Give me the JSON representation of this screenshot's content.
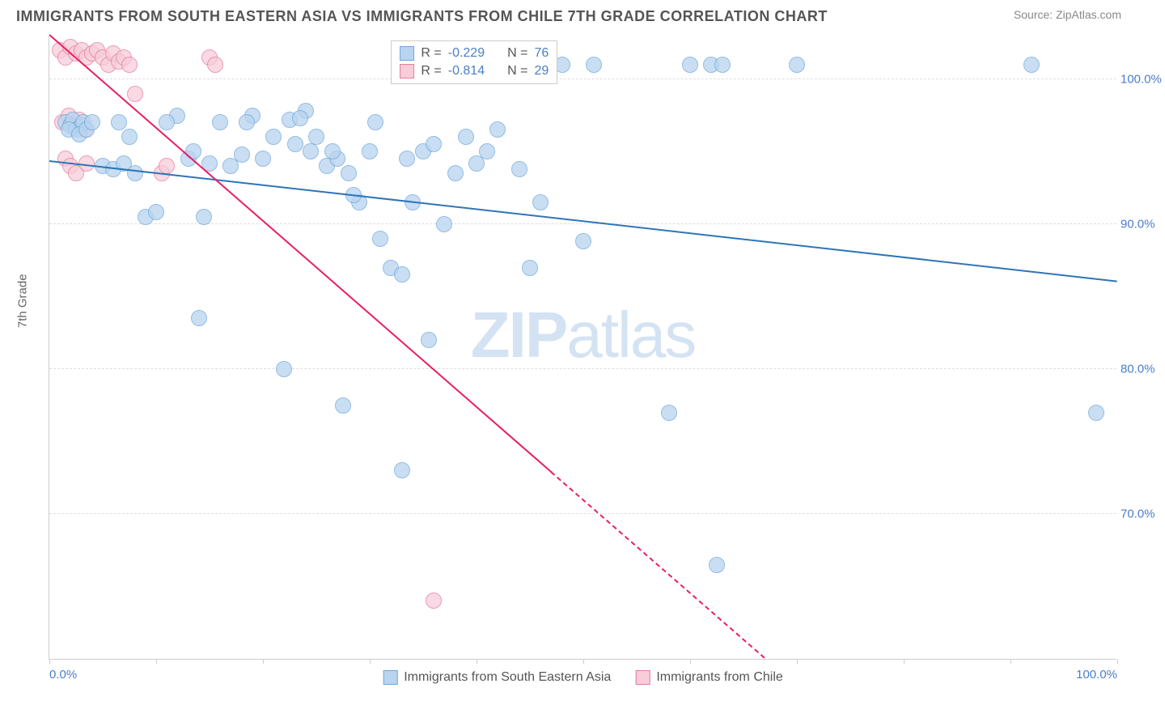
{
  "title": "IMMIGRANTS FROM SOUTH EASTERN ASIA VS IMMIGRANTS FROM CHILE 7TH GRADE CORRELATION CHART",
  "source": "Source: ZipAtlas.com",
  "ylabel": "7th Grade",
  "watermark_bold": "ZIP",
  "watermark_light": "atlas",
  "chart": {
    "type": "scatter",
    "xlim": [
      0,
      100
    ],
    "ylim": [
      60,
      103
    ],
    "x_tick_positions": [
      0,
      10,
      20,
      30,
      40,
      50,
      60,
      70,
      80,
      90,
      100
    ],
    "x_labeled_ticks": [
      {
        "pos": 0,
        "label": "0.0%"
      },
      {
        "pos": 100,
        "label": "100.0%"
      }
    ],
    "y_ticks": [
      {
        "pos": 70,
        "label": "70.0%"
      },
      {
        "pos": 80,
        "label": "80.0%"
      },
      {
        "pos": 90,
        "label": "90.0%"
      },
      {
        "pos": 100,
        "label": "100.0%"
      }
    ],
    "series": [
      {
        "name": "Immigrants from South Eastern Asia",
        "fill": "#b8d4ee",
        "stroke": "#6fa8dc",
        "line_color": "#2e75b6",
        "radius": 10,
        "opacity": 0.75,
        "R_label": "R = ",
        "R_value": "-0.229",
        "N_label": "N = ",
        "N_value": "76",
        "trend": {
          "x1": 0,
          "y1": 94.3,
          "x2": 100,
          "y2": 86.0
        },
        "points": [
          [
            1.5,
            97.0
          ],
          [
            2.0,
            96.8
          ],
          [
            2.2,
            97.2
          ],
          [
            2.5,
            96.5
          ],
          [
            3.0,
            96.8
          ],
          [
            3.2,
            97.0
          ],
          [
            1.8,
            96.5
          ],
          [
            2.8,
            96.2
          ],
          [
            3.5,
            96.5
          ],
          [
            4.0,
            97.0
          ],
          [
            5.0,
            94.0
          ],
          [
            6.0,
            93.8
          ],
          [
            7.0,
            94.2
          ],
          [
            8.0,
            93.5
          ],
          [
            9.0,
            90.5
          ],
          [
            10.0,
            90.8
          ],
          [
            12.0,
            97.5
          ],
          [
            13.0,
            94.5
          ],
          [
            14.0,
            83.5
          ],
          [
            15.0,
            94.2
          ],
          [
            16.0,
            97.0
          ],
          [
            17.0,
            94.0
          ],
          [
            18.0,
            94.8
          ],
          [
            19.0,
            97.5
          ],
          [
            20.0,
            94.5
          ],
          [
            21.0,
            96.0
          ],
          [
            22.0,
            80.0
          ],
          [
            22.5,
            97.2
          ],
          [
            23.0,
            95.5
          ],
          [
            24.0,
            97.8
          ],
          [
            25.0,
            96.0
          ],
          [
            26.0,
            94.0
          ],
          [
            27.0,
            94.5
          ],
          [
            28.0,
            93.5
          ],
          [
            29.0,
            91.5
          ],
          [
            27.5,
            77.5
          ],
          [
            30.0,
            95.0
          ],
          [
            30.5,
            97.0
          ],
          [
            31.0,
            89.0
          ],
          [
            32.0,
            87.0
          ],
          [
            33.0,
            86.5
          ],
          [
            33.5,
            94.5
          ],
          [
            34.0,
            91.5
          ],
          [
            35.0,
            95.0
          ],
          [
            35.5,
            82.0
          ],
          [
            36.0,
            95.5
          ],
          [
            37.0,
            90.0
          ],
          [
            38.0,
            93.5
          ],
          [
            33.0,
            73.0
          ],
          [
            40.0,
            94.2
          ],
          [
            42.0,
            96.5
          ],
          [
            44.0,
            93.8
          ],
          [
            45.0,
            87.0
          ],
          [
            48.0,
            101.0
          ],
          [
            50.0,
            88.8
          ],
          [
            58.0,
            77.0
          ],
          [
            60.0,
            101.0
          ],
          [
            62.0,
            101.0
          ],
          [
            63.0,
            101.0
          ],
          [
            62.5,
            66.5
          ],
          [
            70.0,
            101.0
          ],
          [
            92.0,
            101.0
          ],
          [
            98.0,
            77.0
          ],
          [
            51,
            101
          ],
          [
            11,
            97
          ],
          [
            13.5,
            95
          ],
          [
            18.5,
            97
          ],
          [
            14.5,
            90.5
          ],
          [
            6.5,
            97
          ],
          [
            7.5,
            96
          ],
          [
            23.5,
            97.3
          ],
          [
            24.5,
            95
          ],
          [
            28.5,
            92
          ],
          [
            26.5,
            95
          ],
          [
            39,
            96
          ],
          [
            41,
            95
          ],
          [
            46,
            91.5
          ]
        ]
      },
      {
        "name": "Immigrants from Chile",
        "fill": "#f7cdd9",
        "stroke": "#e57ba0",
        "line_color": "#e91e63",
        "radius": 10,
        "opacity": 0.75,
        "R_label": "R = ",
        "R_value": "-0.814",
        "N_label": "N = ",
        "N_value": "29",
        "trend": {
          "x1": 0,
          "y1": 103,
          "x2": 67,
          "y2": 60
        },
        "trend_solid_until_x": 47,
        "points": [
          [
            1.0,
            102.0
          ],
          [
            1.5,
            101.5
          ],
          [
            2.0,
            102.2
          ],
          [
            2.5,
            101.8
          ],
          [
            3.0,
            102.0
          ],
          [
            3.5,
            101.5
          ],
          [
            4.0,
            101.8
          ],
          [
            4.5,
            102.0
          ],
          [
            5.0,
            101.5
          ],
          [
            5.5,
            101.0
          ],
          [
            6.0,
            101.8
          ],
          [
            6.5,
            101.2
          ],
          [
            7.0,
            101.5
          ],
          [
            7.5,
            101.0
          ],
          [
            8.0,
            99.0
          ],
          [
            1.2,
            97.0
          ],
          [
            1.8,
            97.5
          ],
          [
            2.3,
            96.8
          ],
          [
            2.8,
            97.2
          ],
          [
            3.3,
            96.5
          ],
          [
            1.5,
            94.5
          ],
          [
            2.0,
            94.0
          ],
          [
            2.5,
            93.5
          ],
          [
            3.5,
            94.2
          ],
          [
            10.5,
            93.5
          ],
          [
            15.0,
            101.5
          ],
          [
            15.5,
            101.0
          ],
          [
            11.0,
            94.0
          ],
          [
            36.0,
            64.0
          ]
        ]
      }
    ]
  },
  "legend_bottom": [
    {
      "swatch_fill": "#b8d4ee",
      "swatch_stroke": "#6fa8dc",
      "label": "Immigrants from South Eastern Asia"
    },
    {
      "swatch_fill": "#f7cdd9",
      "swatch_stroke": "#e57ba0",
      "label": "Immigrants from Chile"
    }
  ]
}
